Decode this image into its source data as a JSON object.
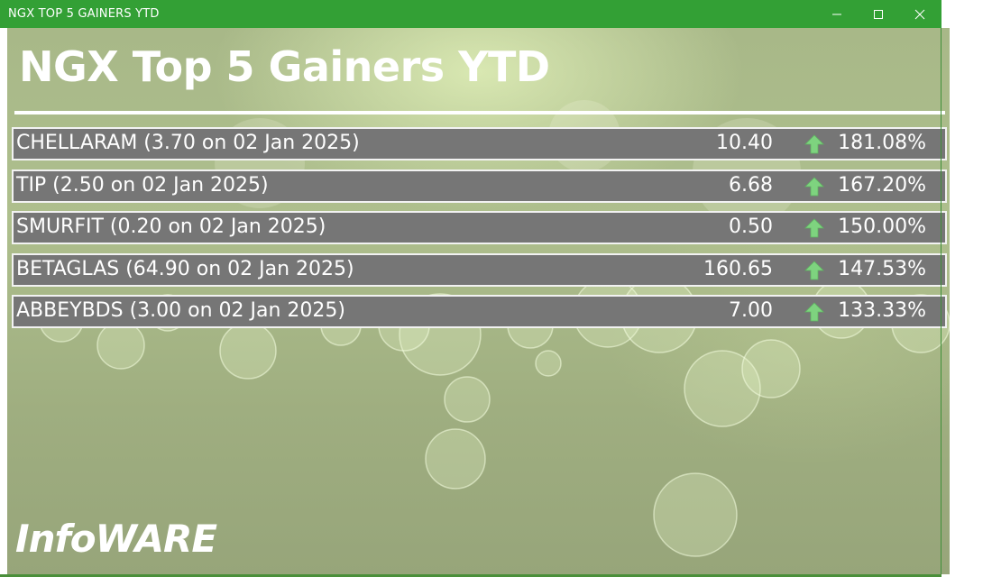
{
  "window": {
    "title": "NGX TOP 5 GAINERS YTD",
    "title_bar_color": "#33a035"
  },
  "header": {
    "title": "NGX Top 5 Gainers YTD"
  },
  "gainers": [
    {
      "label": "CHELLARAM (3.70 on 02 Jan 2025)",
      "price": "10.40",
      "change": "181.08%"
    },
    {
      "label": "TIP (2.50 on 02 Jan 2025)",
      "price": "6.68",
      "change": "167.20%"
    },
    {
      "label": "SMURFIT (0.20 on 02 Jan 2025)",
      "price": "0.50",
      "change": "150.00%"
    },
    {
      "label": "BETAGLAS (64.90 on 02 Jan 2025)",
      "price": "160.65",
      "change": "147.53%"
    },
    {
      "label": "ABBEYBDS (3.00 on 02 Jan 2025)",
      "price": "7.00",
      "change": "133.33%"
    }
  ],
  "icons": {
    "trend": "up-arrow-icon",
    "minimize": "minimize-icon",
    "maximize": "maximize-icon",
    "close": "close-icon"
  },
  "colors": {
    "row_background": "#767676",
    "up_arrow": "#7ed37f"
  },
  "branding": {
    "logo_text": "InfoWARE"
  }
}
